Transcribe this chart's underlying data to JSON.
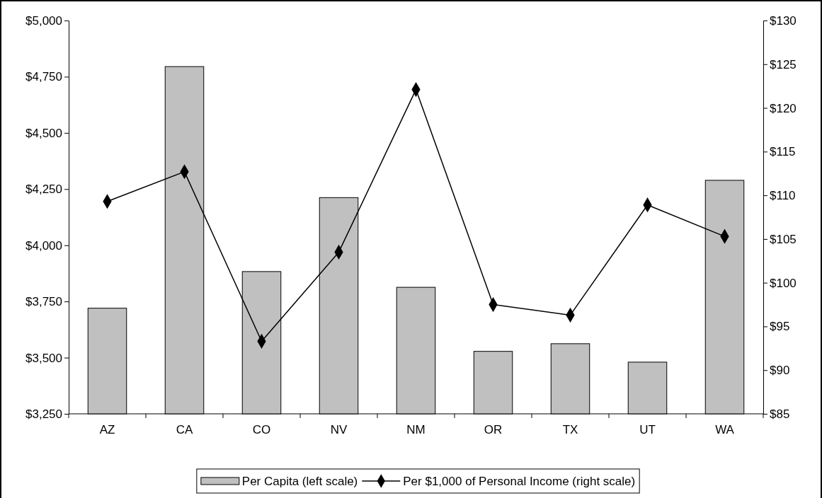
{
  "chart_data": {
    "type": "bar",
    "categories": [
      "AZ",
      "CA",
      "CO",
      "NV",
      "NM",
      "OR",
      "TX",
      "UT",
      "WA"
    ],
    "series": [
      {
        "name": "Per Capita (left scale)",
        "color": "#c0c0c0",
        "values": [
          3720,
          4795,
          3883,
          4212,
          3813,
          3528,
          3562,
          3480,
          4289
        ]
      },
      {
        "name": "Per $1,000 of Personal Income (right scale)",
        "type": "line",
        "axis": "y2",
        "color": "#000000",
        "marker": "diamond",
        "values": [
          109.3,
          112.7,
          93.3,
          103.5,
          122.1,
          97.5,
          96.3,
          108.9,
          105.3
        ]
      }
    ],
    "ylim": [
      3250,
      5000
    ],
    "yticks": [
      {
        "value": 3250,
        "label": "$3,250"
      },
      {
        "value": 3500,
        "label": "$3,500"
      },
      {
        "value": 3750,
        "label": "$3,750"
      },
      {
        "value": 4000,
        "label": "$4,000"
      },
      {
        "value": 4250,
        "label": "$4,250"
      },
      {
        "value": 4500,
        "label": "$4,500"
      },
      {
        "value": 4750,
        "label": "$4,750"
      },
      {
        "value": 5000,
        "label": "$5,000"
      }
    ],
    "y2lim": [
      85,
      130
    ],
    "y2ticks": [
      {
        "value": 85,
        "label": "$85"
      },
      {
        "value": 90,
        "label": "$90"
      },
      {
        "value": 95,
        "label": "$95"
      },
      {
        "value": 100,
        "label": "$100"
      },
      {
        "value": 105,
        "label": "$105"
      },
      {
        "value": 110,
        "label": "$110"
      },
      {
        "value": 115,
        "label": "$115"
      },
      {
        "value": 120,
        "label": "$120"
      },
      {
        "value": 125,
        "label": "$125"
      },
      {
        "value": 130,
        "label": "$130"
      }
    ],
    "legend": "bottom",
    "grid": false
  }
}
